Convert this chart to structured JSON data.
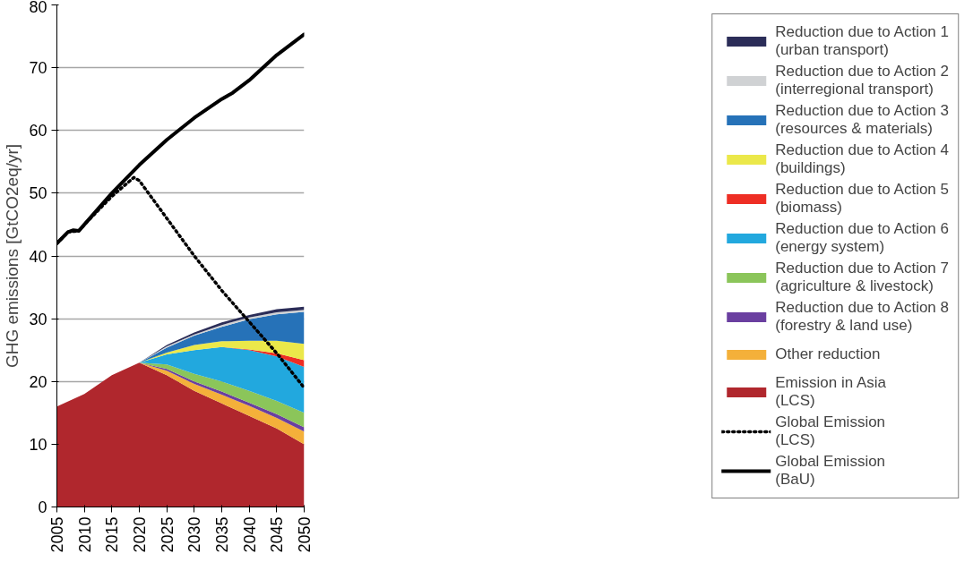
{
  "chart_data": {
    "type": "area",
    "stacked": true,
    "ylabel": "GHG emissions [GtCO2eq/yr]",
    "x": [
      2005,
      2010,
      2015,
      2020,
      2025,
      2030,
      2035,
      2040,
      2045,
      2050
    ],
    "xlim": [
      2005,
      2050
    ],
    "xticks": [
      2005,
      2010,
      2015,
      2020,
      2025,
      2030,
      2035,
      2040,
      2045,
      2050
    ],
    "ylim": [
      0,
      80
    ],
    "yticks": [
      0,
      10,
      20,
      30,
      40,
      50,
      60,
      70,
      80
    ],
    "grid": "y",
    "legend": "right",
    "series": [
      {
        "name": "Emission in Asia (LCS)",
        "color": "#b0272d",
        "values": [
          16,
          18,
          21,
          23,
          21,
          18.5,
          16.5,
          14.5,
          12.5,
          10
        ]
      },
      {
        "name": "Other reduction",
        "color": "#f4b03a",
        "values": [
          0,
          0,
          0,
          0,
          0.7,
          1.1,
          1.4,
          1.6,
          1.7,
          2
        ]
      },
      {
        "name": "Reduction due to Action 8 (forestry & land use)",
        "color": "#6a3fa0",
        "values": [
          0,
          0,
          0,
          0,
          0.3,
          0.4,
          0.5,
          0.5,
          0.6,
          0.7
        ]
      },
      {
        "name": "Reduction due to Action 7 (agriculture & livestock)",
        "color": "#8bc55a",
        "values": [
          0,
          0,
          0,
          0,
          0.7,
          1.2,
          1.6,
          1.9,
          2.1,
          2.3
        ]
      },
      {
        "name": "Reduction due to Action 6 (energy system)",
        "color": "#22a8de",
        "values": [
          0,
          0,
          0,
          0,
          1.6,
          3.8,
          5.5,
          6.5,
          7.1,
          7.3
        ]
      },
      {
        "name": "Reduction due to Action 5 (biomass)",
        "color": "#ee2e24",
        "values": [
          0,
          0,
          0,
          0,
          0,
          0,
          0,
          0.1,
          0.5,
          1.1
        ]
      },
      {
        "name": "Reduction due to Action 4 (buildings)",
        "color": "#ebe84a",
        "values": [
          0,
          0,
          0,
          0,
          0.3,
          0.8,
          0.9,
          1.4,
          2.0,
          2.6
        ]
      },
      {
        "name": "Reduction due to Action 3 (resources & materials)",
        "color": "#2672b8",
        "values": [
          0,
          0,
          0,
          0,
          0.8,
          1.5,
          2.3,
          3.4,
          4.2,
          5.1
        ]
      },
      {
        "name": "Reduction due to Action 2 (interregional transport)",
        "color": "#d0d2d4",
        "values": [
          0,
          0,
          0,
          0,
          0.2,
          0.2,
          0.3,
          0.3,
          0.3,
          0.3
        ]
      },
      {
        "name": "Reduction due to Action 1 (urban transport)",
        "color": "#2b2d58",
        "values": [
          0,
          0,
          0,
          0,
          0.2,
          0.3,
          0.4,
          0.4,
          0.5,
          0.5
        ]
      },
      {
        "name": "Global Emission (LCS)",
        "type": "line",
        "line_style": "dotted",
        "color": "#000000",
        "x": [
          2005,
          2007,
          2009,
          2010,
          2015,
          2019,
          2020,
          2025,
          2030,
          2035,
          2040,
          2045,
          2050
        ],
        "values": [
          42,
          43.8,
          44,
          45,
          49.5,
          52.5,
          52,
          46,
          40,
          34.5,
          29.5,
          24.5,
          19
        ]
      },
      {
        "name": "Global Emission (BaU)",
        "type": "line",
        "line_style": "solid",
        "color": "#000000",
        "x": [
          2005,
          2007,
          2008,
          2009,
          2010,
          2015,
          2020,
          2025,
          2030,
          2035,
          2037,
          2040,
          2045,
          2050
        ],
        "values": [
          42,
          43.8,
          44.1,
          44,
          45,
          50,
          54.5,
          58.5,
          62,
          65,
          66,
          68,
          72,
          75.3
        ]
      }
    ]
  }
}
